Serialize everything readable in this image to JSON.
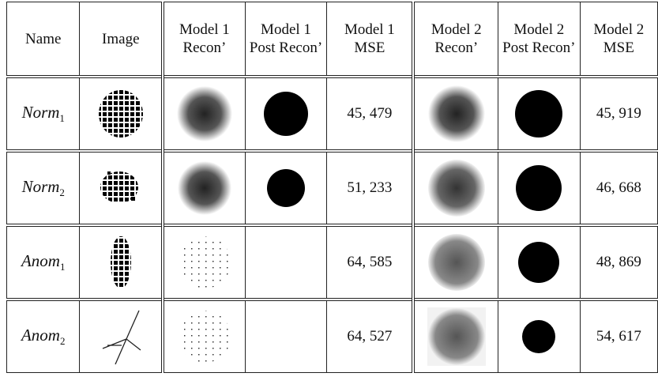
{
  "table": {
    "header": [
      "Name",
      "Image",
      "Model 1 Recon’",
      "Model 1 Post Recon’",
      "Model 1 MSE",
      "Model 2 Recon’",
      "Model 2 Post Recon’",
      "Model 2 MSE"
    ],
    "rows": [
      {
        "name": {
          "base": "Norm",
          "sub": "1"
        },
        "model1_mse": "45, 479",
        "model2_mse": "45, 919"
      },
      {
        "name": {
          "base": "Norm",
          "sub": "2"
        },
        "model1_mse": "51, 233",
        "model2_mse": "46, 668"
      },
      {
        "name": {
          "base": "Anom",
          "sub": "1"
        },
        "model1_mse": "64, 585",
        "model2_mse": "48, 869"
      },
      {
        "name": {
          "base": "Anom",
          "sub": "2"
        },
        "model1_mse": "64, 527",
        "model2_mse": "54, 617"
      }
    ]
  }
}
